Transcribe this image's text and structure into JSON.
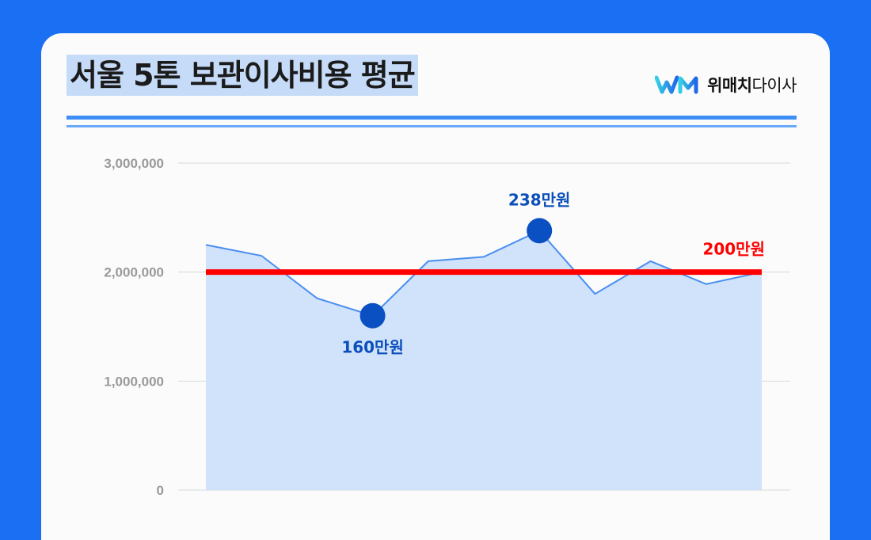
{
  "header": {
    "title": "서울 5톤 보관이사비용 평균",
    "brand_bold": "위매치",
    "brand_rest": "다이사",
    "brand_icon": "wm-logo-icon"
  },
  "colors": {
    "background": "#1a6ff2",
    "line": "#4a8ff0",
    "area": "#cfe0fb",
    "marker": "#0b50c2",
    "average": "#ff0000",
    "label_blue": "#0b4fbb",
    "label_red": "#ff0000"
  },
  "chart_data": {
    "type": "area",
    "title": "서울 5톤 보관이사비용 평균",
    "xlabel": "",
    "ylabel": "",
    "ylim": [
      0,
      3000000
    ],
    "yticks": [
      0,
      1000000,
      2000000,
      3000000
    ],
    "ytick_labels": [
      "0",
      "1,000,000",
      "2,000,000",
      "3,000,000"
    ],
    "grid": true,
    "series": [
      {
        "values": [
          2250000,
          2150000,
          1760000,
          1600000,
          2100000,
          2140000,
          2380000,
          1800000,
          2100000,
          1890000,
          2000000
        ]
      }
    ],
    "highlights": [
      {
        "index": 3,
        "label": "160만원",
        "position": "below"
      },
      {
        "index": 6,
        "label": "238만원",
        "position": "above"
      }
    ],
    "average_line": {
      "value": 2000000,
      "label": "200만원"
    }
  }
}
